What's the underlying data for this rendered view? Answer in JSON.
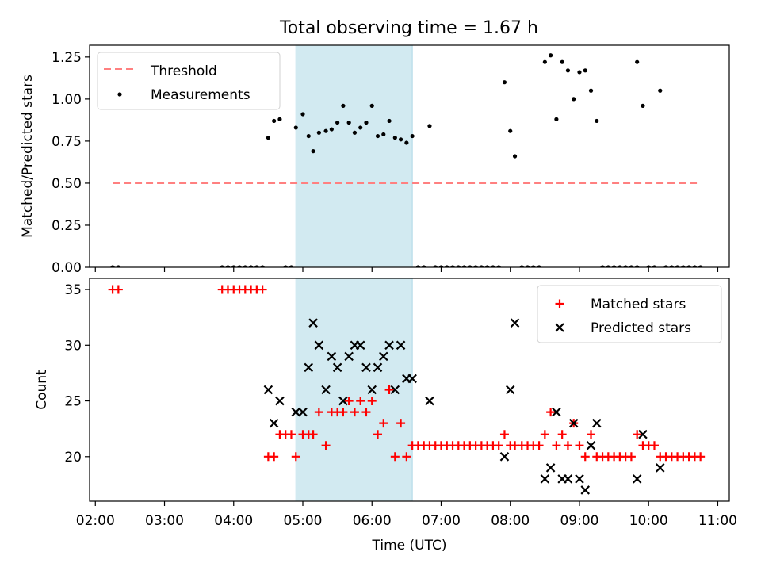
{
  "chart_data": [
    {
      "type": "scatter",
      "title": "Total observing time = 1.67 h",
      "xlabel": "",
      "ylabel": "Matched/Predicted stars",
      "xlim": [
        "01:55",
        "11:10"
      ],
      "ylim": [
        0,
        1.32
      ],
      "yticks": [
        "0.00",
        "0.25",
        "0.50",
        "0.75",
        "1.00",
        "1.25"
      ],
      "grid": false,
      "legend_position": "upper left",
      "shaded_span": {
        "x": [
          "04:54",
          "06:35"
        ],
        "color": "#add8e6"
      },
      "series": [
        {
          "name": "Threshold",
          "style": "dashed-line",
          "color": "#ff8080",
          "x": [
            "02:15",
            "10:45"
          ],
          "y": [
            0.5,
            0.5
          ]
        },
        {
          "name": "Measurements",
          "style": "dots",
          "color": "#000000",
          "points": [
            [
              "02:15",
              0
            ],
            [
              "02:20",
              0
            ],
            [
              "03:50",
              0
            ],
            [
              "03:55",
              0
            ],
            [
              "04:00",
              0
            ],
            [
              "04:05",
              0
            ],
            [
              "04:10",
              0
            ],
            [
              "04:15",
              0
            ],
            [
              "04:20",
              0
            ],
            [
              "04:25",
              0
            ],
            [
              "04:45",
              0
            ],
            [
              "04:50",
              0
            ],
            [
              "04:30",
              0.77
            ],
            [
              "04:35",
              0.87
            ],
            [
              "04:40",
              0.88
            ],
            [
              "04:54",
              0.83
            ],
            [
              "05:00",
              0.91
            ],
            [
              "05:05",
              0.78
            ],
            [
              "05:09",
              0.69
            ],
            [
              "05:14",
              0.8
            ],
            [
              "05:20",
              0.81
            ],
            [
              "05:25",
              0.82
            ],
            [
              "05:30",
              0.86
            ],
            [
              "05:35",
              0.96
            ],
            [
              "05:40",
              0.86
            ],
            [
              "05:45",
              0.8
            ],
            [
              "05:50",
              0.83
            ],
            [
              "05:55",
              0.86
            ],
            [
              "06:00",
              0.96
            ],
            [
              "06:05",
              0.78
            ],
            [
              "06:10",
              0.79
            ],
            [
              "06:15",
              0.87
            ],
            [
              "06:20",
              0.77
            ],
            [
              "06:25",
              0.76
            ],
            [
              "06:30",
              0.74
            ],
            [
              "06:35",
              0.78
            ],
            [
              "06:40",
              0
            ],
            [
              "06:45",
              0
            ],
            [
              "06:50",
              0.84
            ],
            [
              "06:55",
              0
            ],
            [
              "07:00",
              0
            ],
            [
              "07:05",
              0
            ],
            [
              "07:10",
              0
            ],
            [
              "07:15",
              0
            ],
            [
              "07:20",
              0
            ],
            [
              "07:25",
              0
            ],
            [
              "07:30",
              0
            ],
            [
              "07:35",
              0
            ],
            [
              "07:40",
              0
            ],
            [
              "07:45",
              0
            ],
            [
              "07:50",
              0
            ],
            [
              "07:55",
              1.1
            ],
            [
              "08:00",
              0.81
            ],
            [
              "08:04",
              0.66
            ],
            [
              "08:10",
              0
            ],
            [
              "08:15",
              0
            ],
            [
              "08:20",
              0
            ],
            [
              "08:25",
              0
            ],
            [
              "08:30",
              1.22
            ],
            [
              "08:35",
              1.26
            ],
            [
              "08:40",
              0.88
            ],
            [
              "08:45",
              1.22
            ],
            [
              "08:50",
              1.17
            ],
            [
              "08:55",
              1.0
            ],
            [
              "09:00",
              1.16
            ],
            [
              "09:05",
              1.17
            ],
            [
              "09:10",
              1.05
            ],
            [
              "09:15",
              0.87
            ],
            [
              "09:20",
              0
            ],
            [
              "09:25",
              0
            ],
            [
              "09:30",
              0
            ],
            [
              "09:35",
              0
            ],
            [
              "09:40",
              0
            ],
            [
              "09:45",
              0
            ],
            [
              "09:50",
              0
            ],
            [
              "09:50",
              1.22
            ],
            [
              "09:55",
              0.96
            ],
            [
              "10:00",
              0
            ],
            [
              "10:05",
              0
            ],
            [
              "10:10",
              1.05
            ],
            [
              "10:15",
              0
            ],
            [
              "10:20",
              0
            ],
            [
              "10:25",
              0
            ],
            [
              "10:30",
              0
            ],
            [
              "10:35",
              0
            ],
            [
              "10:40",
              0
            ],
            [
              "10:45",
              0
            ]
          ]
        }
      ]
    },
    {
      "type": "scatter",
      "xlabel": "Time (UTC)",
      "ylabel": "Count",
      "xlim": [
        "01:55",
        "11:10"
      ],
      "ylim": [
        16,
        36
      ],
      "yticks": [
        "20",
        "25",
        "30",
        "35"
      ],
      "xticks": [
        "02:00",
        "03:00",
        "04:00",
        "05:00",
        "06:00",
        "07:00",
        "08:00",
        "09:00",
        "10:00",
        "11:00"
      ],
      "grid": false,
      "legend_position": "upper right",
      "shaded_span": {
        "x": [
          "04:54",
          "06:35"
        ],
        "color": "#add8e6"
      },
      "series": [
        {
          "name": "Matched stars",
          "marker": "plus",
          "color": "#ff0000",
          "points": [
            [
              "02:15",
              35
            ],
            [
              "02:20",
              35
            ],
            [
              "03:50",
              35
            ],
            [
              "03:55",
              35
            ],
            [
              "04:00",
              35
            ],
            [
              "04:05",
              35
            ],
            [
              "04:10",
              35
            ],
            [
              "04:15",
              35
            ],
            [
              "04:20",
              35
            ],
            [
              "04:25",
              35
            ],
            [
              "04:30",
              20
            ],
            [
              "04:35",
              20
            ],
            [
              "04:40",
              22
            ],
            [
              "04:45",
              22
            ],
            [
              "04:50",
              22
            ],
            [
              "04:54",
              20
            ],
            [
              "05:00",
              22
            ],
            [
              "05:05",
              22
            ],
            [
              "05:09",
              22
            ],
            [
              "05:14",
              24
            ],
            [
              "05:20",
              21
            ],
            [
              "05:25",
              24
            ],
            [
              "05:30",
              24
            ],
            [
              "05:35",
              24
            ],
            [
              "05:40",
              25
            ],
            [
              "05:45",
              24
            ],
            [
              "05:50",
              25
            ],
            [
              "05:55",
              24
            ],
            [
              "06:00",
              25
            ],
            [
              "06:05",
              22
            ],
            [
              "06:10",
              23
            ],
            [
              "06:15",
              26
            ],
            [
              "06:20",
              20
            ],
            [
              "06:25",
              23
            ],
            [
              "06:30",
              20
            ],
            [
              "06:35",
              21
            ],
            [
              "06:40",
              21
            ],
            [
              "06:45",
              21
            ],
            [
              "06:50",
              21
            ],
            [
              "06:55",
              21
            ],
            [
              "07:00",
              21
            ],
            [
              "07:05",
              21
            ],
            [
              "07:10",
              21
            ],
            [
              "07:15",
              21
            ],
            [
              "07:20",
              21
            ],
            [
              "07:25",
              21
            ],
            [
              "07:30",
              21
            ],
            [
              "07:35",
              21
            ],
            [
              "07:40",
              21
            ],
            [
              "07:45",
              21
            ],
            [
              "07:50",
              21
            ],
            [
              "07:55",
              22
            ],
            [
              "08:00",
              21
            ],
            [
              "08:04",
              21
            ],
            [
              "08:10",
              21
            ],
            [
              "08:15",
              21
            ],
            [
              "08:20",
              21
            ],
            [
              "08:25",
              21
            ],
            [
              "08:30",
              22
            ],
            [
              "08:35",
              24
            ],
            [
              "08:40",
              21
            ],
            [
              "08:45",
              22
            ],
            [
              "08:50",
              21
            ],
            [
              "08:55",
              23
            ],
            [
              "09:00",
              21
            ],
            [
              "09:05",
              20
            ],
            [
              "09:10",
              22
            ],
            [
              "09:15",
              20
            ],
            [
              "09:20",
              20
            ],
            [
              "09:25",
              20
            ],
            [
              "09:30",
              20
            ],
            [
              "09:35",
              20
            ],
            [
              "09:40",
              20
            ],
            [
              "09:45",
              20
            ],
            [
              "09:50",
              22
            ],
            [
              "09:55",
              21
            ],
            [
              "10:00",
              21
            ],
            [
              "10:05",
              21
            ],
            [
              "10:10",
              20
            ],
            [
              "10:15",
              20
            ],
            [
              "10:20",
              20
            ],
            [
              "10:25",
              20
            ],
            [
              "10:30",
              20
            ],
            [
              "10:35",
              20
            ],
            [
              "10:40",
              20
            ],
            [
              "10:45",
              20
            ]
          ]
        },
        {
          "name": "Predicted stars",
          "marker": "x",
          "color": "#000000",
          "points": [
            [
              "04:30",
              26
            ],
            [
              "04:35",
              23
            ],
            [
              "04:40",
              25
            ],
            [
              "04:54",
              24
            ],
            [
              "05:00",
              24
            ],
            [
              "05:05",
              28
            ],
            [
              "05:09",
              32
            ],
            [
              "05:14",
              30
            ],
            [
              "05:20",
              26
            ],
            [
              "05:25",
              29
            ],
            [
              "05:30",
              28
            ],
            [
              "05:35",
              25
            ],
            [
              "05:40",
              29
            ],
            [
              "05:45",
              30
            ],
            [
              "05:50",
              30
            ],
            [
              "05:55",
              28
            ],
            [
              "06:00",
              26
            ],
            [
              "06:05",
              28
            ],
            [
              "06:10",
              29
            ],
            [
              "06:15",
              30
            ],
            [
              "06:20",
              26
            ],
            [
              "06:25",
              30
            ],
            [
              "06:30",
              27
            ],
            [
              "06:35",
              27
            ],
            [
              "06:50",
              25
            ],
            [
              "07:55",
              20
            ],
            [
              "08:00",
              26
            ],
            [
              "08:04",
              32
            ],
            [
              "08:30",
              18
            ],
            [
              "08:35",
              19
            ],
            [
              "08:40",
              24
            ],
            [
              "08:45",
              18
            ],
            [
              "08:50",
              18
            ],
            [
              "08:55",
              23
            ],
            [
              "09:00",
              18
            ],
            [
              "09:05",
              17
            ],
            [
              "09:10",
              21
            ],
            [
              "09:15",
              23
            ],
            [
              "09:50",
              18
            ],
            [
              "09:55",
              22
            ],
            [
              "10:10",
              19
            ]
          ]
        }
      ]
    }
  ]
}
